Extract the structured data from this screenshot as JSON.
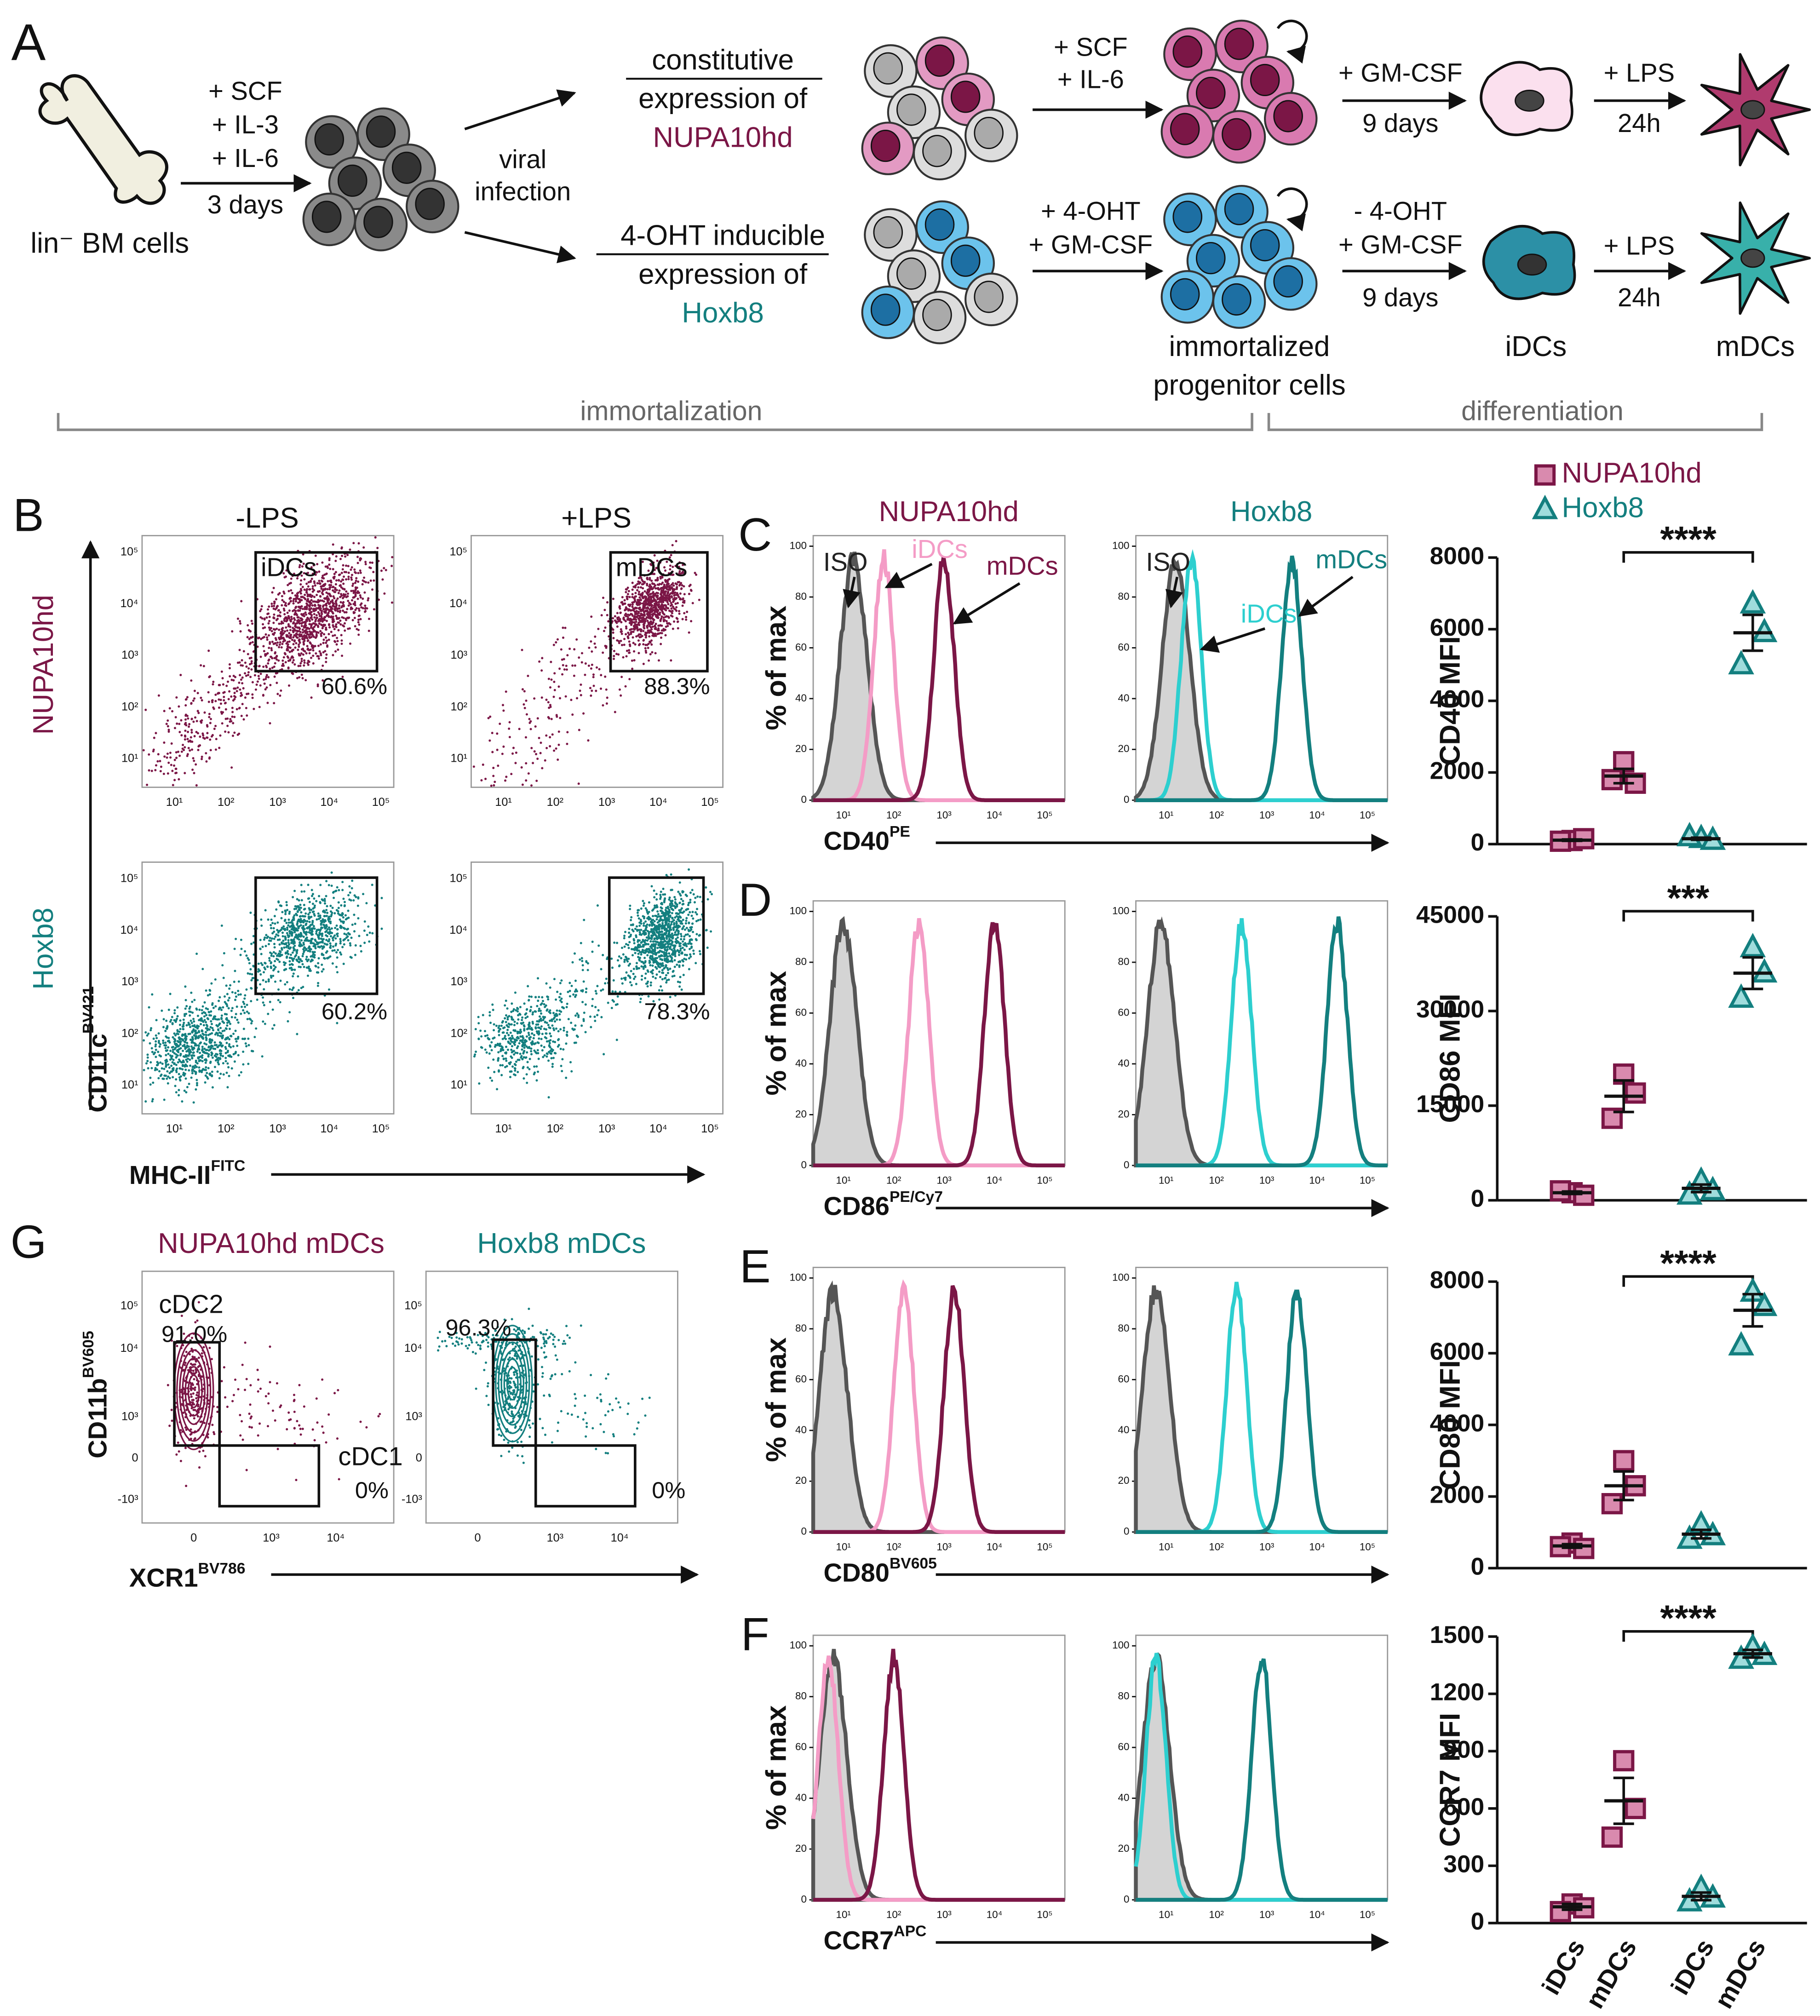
{
  "panel_a": {
    "label": "A",
    "source": "lin⁻ BM cells",
    "culture": [
      "+ SCF",
      "+ IL-3",
      "+ IL-6"
    ],
    "culture_time": "3 days",
    "infection": [
      "viral",
      "infection"
    ],
    "nupa": {
      "line1": "constitutive",
      "line2": "expression of",
      "name": "NUPA10hd",
      "expand": [
        "+ SCF",
        "+ IL-6"
      ],
      "diff": [
        "+ GM-CSF"
      ],
      "diff_time": "9 days",
      "mature": "+ LPS",
      "mature_time": "24h"
    },
    "hoxb8": {
      "line1": "4-OHT inducible",
      "line2": "expression of",
      "name": "Hoxb8",
      "expand": [
        "+ 4-OHT",
        "+ GM-CSF"
      ],
      "diff": [
        "- 4-OHT",
        "+ GM-CSF"
      ],
      "diff_time": "9 days",
      "mature": "+ LPS",
      "mature_time": "24h"
    },
    "stages": [
      "immortalized",
      "progenitor cells"
    ],
    "idc": "iDCs",
    "mdc": "mDCs",
    "phases": [
      "immortalization",
      "differentiation"
    ]
  },
  "log_tick_labels": [
    "10¹",
    "10²",
    "10³",
    "10⁴",
    "10⁵"
  ],
  "panel_b": {
    "label": "B",
    "columns": [
      "-LPS",
      "+LPS"
    ],
    "rows": [
      "NUPA10hd",
      "Hoxb8"
    ],
    "gates": [
      "iDCs",
      "mDCs"
    ],
    "percents": [
      [
        "60.6%",
        "88.3%"
      ],
      [
        "60.2%",
        "78.3%"
      ]
    ],
    "y_axis": {
      "name": "CD11c",
      "sup": "BV421"
    },
    "x_axis": {
      "name": "MHC-II",
      "sup": "FITC"
    }
  },
  "panel_g": {
    "label": "G",
    "titles": [
      "NUPA10hd mDCs",
      "Hoxb8 mDCs"
    ],
    "gates": [
      "cDC2",
      "cDC1"
    ],
    "percents": [
      [
        "91.0%",
        "0%"
      ],
      [
        "96.3%",
        "0%"
      ]
    ],
    "y_axis": {
      "name": "CD11b",
      "sup": "BV605"
    },
    "x_axis": {
      "name": "XCR1",
      "sup": "BV786"
    },
    "yticks": [
      "10⁵",
      "10⁴",
      "10³",
      "0",
      "-10³"
    ],
    "xticks": [
      "0",
      "10³",
      "10⁴"
    ]
  },
  "histograms": {
    "titles": [
      "NUPA10hd",
      "Hoxb8"
    ],
    "y_label": "% of max",
    "yticks": [
      0,
      20,
      40,
      60,
      80,
      100
    ],
    "annotations": [
      "ISO",
      "iDCs",
      "mDCs"
    ],
    "panels": [
      {
        "label": "C",
        "marker": {
          "name": "CD40",
          "sup": "PE"
        },
        "peaks": [
          [
            1.2,
            1.8,
            3.0
          ],
          [
            1.2,
            1.5,
            3.5
          ]
        ]
      },
      {
        "label": "D",
        "marker": {
          "name": "CD86",
          "sup": "PE/Cy7"
        },
        "peaks": [
          [
            1.0,
            2.5,
            4.0
          ],
          [
            0.9,
            2.5,
            4.4
          ]
        ]
      },
      {
        "label": "E",
        "marker": {
          "name": "CD80",
          "sup": "BV605"
        },
        "peaks": [
          [
            0.8,
            2.2,
            3.2
          ],
          [
            0.8,
            2.4,
            3.6
          ]
        ]
      },
      {
        "label": "F",
        "marker": {
          "name": "CCR7",
          "sup": "APC"
        },
        "peaks": [
          [
            0.8,
            0.7,
            2.0
          ],
          [
            0.8,
            0.8,
            2.9
          ]
        ]
      }
    ]
  },
  "mfi": {
    "legend": [
      "NUPA10hd",
      "Hoxb8"
    ],
    "colors": [
      "#7b1646",
      "#137f7f"
    ],
    "fills": [
      "#d98aae",
      "#9fdcdc"
    ],
    "categories": [
      "iDCs",
      "mDCs",
      "iDCs",
      "mDCs"
    ],
    "plots": [
      {
        "y_label": "CD40 MFI",
        "ylim": [
          0,
          8000
        ],
        "yticks": [
          0,
          2000,
          4000,
          6000,
          8000
        ],
        "significance": "****",
        "groups": [
          {
            "values": [
              100,
              150,
              80
            ],
            "mean": 110,
            "sem": 20
          },
          {
            "values": [
              2300,
              1700,
              1800
            ],
            "mean": 1900,
            "sem": 200
          },
          {
            "values": [
              150,
              100,
              200
            ],
            "mean": 150,
            "sem": 30
          },
          {
            "values": [
              6700,
              5900,
              5000
            ],
            "mean": 5900,
            "sem": 500
          }
        ]
      },
      {
        "y_label": "CD86 MFI",
        "ylim": [
          0,
          45000
        ],
        "yticks": [
          0,
          15000,
          30000,
          45000
        ],
        "significance": "***",
        "groups": [
          {
            "values": [
              1200,
              800,
              1500
            ],
            "mean": 1200,
            "sem": 200
          },
          {
            "values": [
              20000,
              17000,
              13000
            ],
            "mean": 16500,
            "sem": 2500
          },
          {
            "values": [
              3000,
              1500,
              800
            ],
            "mean": 1900,
            "sem": 600
          },
          {
            "values": [
              40000,
              36000,
              32000
            ],
            "mean": 36000,
            "sem": 2500
          }
        ]
      },
      {
        "y_label": "CD80 MFI",
        "ylim": [
          0,
          8000
        ],
        "yticks": [
          0,
          2000,
          4000,
          6000,
          8000
        ],
        "significance": "****",
        "groups": [
          {
            "values": [
              700,
              550,
              600
            ],
            "mean": 620,
            "sem": 50
          },
          {
            "values": [
              3000,
              2300,
              1800
            ],
            "mean": 2300,
            "sem": 400
          },
          {
            "values": [
              1200,
              900,
              800
            ],
            "mean": 950,
            "sem": 120
          },
          {
            "values": [
              7700,
              7300,
              6200
            ],
            "mean": 7200,
            "sem": 450
          }
        ]
      },
      {
        "y_label": "CCR7 MFI",
        "ylim": [
          0,
          1500
        ],
        "yticks": [
          0,
          300,
          600,
          900,
          1200,
          1500
        ],
        "significance": "****",
        "groups": [
          {
            "values": [
              100,
              80,
              60
            ],
            "mean": 85,
            "sem": 15
          },
          {
            "values": [
              850,
              600,
              450
            ],
            "mean": 640,
            "sem": 120
          },
          {
            "values": [
              180,
              130,
              110
            ],
            "mean": 140,
            "sem": 20
          },
          {
            "values": [
              1440,
              1400,
              1380
            ],
            "mean": 1410,
            "sem": 20
          }
        ]
      }
    ]
  }
}
